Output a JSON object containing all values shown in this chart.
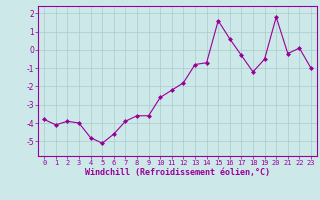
{
  "x": [
    0,
    1,
    2,
    3,
    4,
    5,
    6,
    7,
    8,
    9,
    10,
    11,
    12,
    13,
    14,
    15,
    16,
    17,
    18,
    19,
    20,
    21,
    22,
    23
  ],
  "y": [
    -3.8,
    -4.1,
    -3.9,
    -4.0,
    -4.8,
    -5.1,
    -4.6,
    -3.9,
    -3.6,
    -3.6,
    -2.6,
    -2.2,
    -1.8,
    -0.8,
    -0.7,
    1.6,
    0.6,
    -0.3,
    -1.2,
    -0.5,
    1.8,
    -0.2,
    0.1,
    -1.0
  ],
  "line_color": "#990099",
  "marker": "D",
  "marker_size": 2,
  "bg_color": "#cce8e8",
  "grid_color": "#aacccc",
  "xlabel": "Windchill (Refroidissement éolien,°C)",
  "xlabel_color": "#990099",
  "tick_color": "#990099",
  "spine_color": "#990099",
  "ylim": [
    -5.8,
    2.4
  ],
  "yticks": [
    -5,
    -4,
    -3,
    -2,
    -1,
    0,
    1,
    2
  ],
  "xlim": [
    -0.5,
    23.5
  ],
  "xticks": [
    0,
    1,
    2,
    3,
    4,
    5,
    6,
    7,
    8,
    9,
    10,
    11,
    12,
    13,
    14,
    15,
    16,
    17,
    18,
    19,
    20,
    21,
    22,
    23
  ]
}
